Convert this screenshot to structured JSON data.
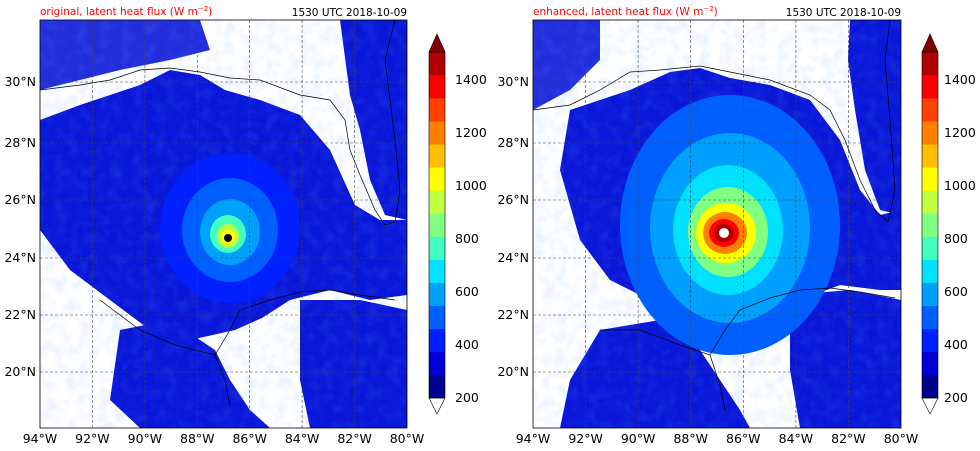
{
  "chart_data": [
    {
      "type": "heatmap",
      "title_left": "original, latent heat flux (W m",
      "title_unit_exponent": "−2",
      "title_close": ")",
      "title_right": "1530 UTC 2018-10-09",
      "xticks": [
        "94°W",
        "92°W",
        "90°W",
        "88°W",
        "86°W",
        "84°W",
        "82°W",
        "80°W"
      ],
      "yticks": [
        "20°N",
        "22°N",
        "24°N",
        "26°N",
        "28°N",
        "30°N"
      ],
      "xlim": [
        -94,
        -80
      ],
      "ylim": [
        18.2,
        32.1
      ],
      "storm_center": {
        "lon": -86.9,
        "lat": 24.7
      },
      "storm_peak_wm2": 1100,
      "colorbar_ticks": [
        "200",
        "400",
        "600",
        "800",
        "1000",
        "1200",
        "1400"
      ],
      "colorbar_range": [
        200,
        1500
      ]
    },
    {
      "type": "heatmap",
      "title_left": "enhanced, latent heat flux (W m",
      "title_unit_exponent": "−2",
      "title_close": ")",
      "title_right": "1530 UTC 2018-10-09",
      "xticks": [
        "94°W",
        "92°W",
        "90°W",
        "88°W",
        "86°W",
        "84°W",
        "82°W",
        "80°W"
      ],
      "yticks": [
        "20°N",
        "22°N",
        "24°N",
        "26°N",
        "28°N",
        "30°N"
      ],
      "xlim": [
        -94,
        -80
      ],
      "ylim": [
        18.2,
        32.1
      ],
      "storm_center": {
        "lon": -86.7,
        "lat": 25.0
      },
      "storm_peak_wm2": 1500,
      "colorbar_ticks": [
        "200",
        "400",
        "600",
        "800",
        "1000",
        "1200",
        "1400"
      ],
      "colorbar_range": [
        200,
        1500
      ]
    }
  ],
  "colors": {
    "title_red": "#ff0000",
    "colorbar": [
      "#00008f",
      "#0000d6",
      "#0020ff",
      "#0060ff",
      "#00a0ff",
      "#00e0ff",
      "#40ffbf",
      "#80ff80",
      "#bfff40",
      "#ffff00",
      "#ffbf00",
      "#ff8000",
      "#ff4000",
      "#ff0000",
      "#b00000"
    ],
    "extend_max": "#800000",
    "land": "#ffffff",
    "ocean_base": "#0a16d8"
  }
}
